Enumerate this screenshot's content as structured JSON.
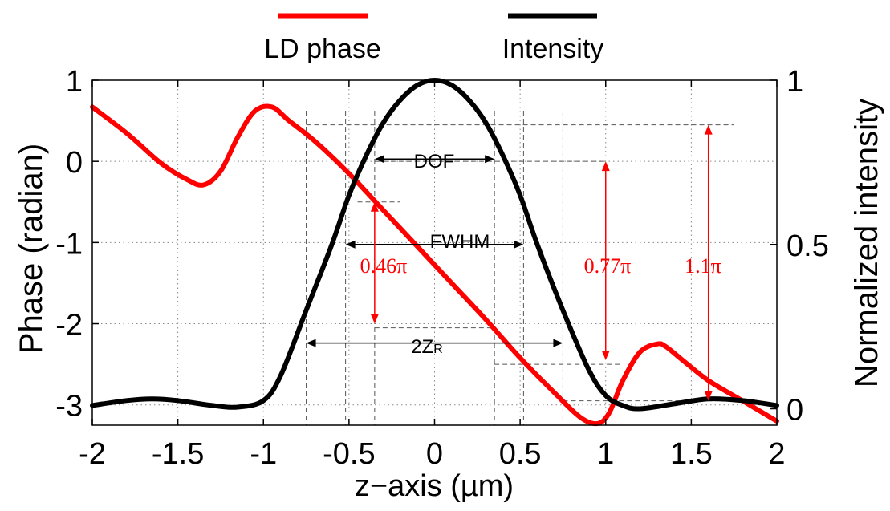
{
  "chart_data": {
    "type": "line",
    "xlabel": "z−axis (µm)",
    "ylabel_left": "Phase (radian)",
    "ylabel_right": "Normalized intensity",
    "xlim": [
      -2,
      2
    ],
    "ylim_left": [
      -3.25,
      1
    ],
    "ylim_right": [
      -0.05,
      1
    ],
    "xticks": [
      {
        "v": -2,
        "label": "-2"
      },
      {
        "v": -1.5,
        "label": "-1.5"
      },
      {
        "v": -1,
        "label": "-1"
      },
      {
        "v": -0.5,
        "label": "-0.5"
      },
      {
        "v": 0,
        "label": "0"
      },
      {
        "v": 0.5,
        "label": "0.5"
      },
      {
        "v": 1,
        "label": "1"
      },
      {
        "v": 1.5,
        "label": "1.5"
      },
      {
        "v": 2,
        "label": "2"
      }
    ],
    "yticks_left": [
      {
        "v": 1,
        "label": "1"
      },
      {
        "v": 0,
        "label": "0"
      },
      {
        "v": -1,
        "label": "-1"
      },
      {
        "v": -2,
        "label": "-2"
      },
      {
        "v": -3,
        "label": "-3"
      }
    ],
    "yticks_right": [
      {
        "v": 1,
        "label": "1"
      },
      {
        "v": 0.5,
        "label": "0.5"
      },
      {
        "v": 0,
        "label": "0"
      }
    ],
    "grid": true,
    "legend_position": "top",
    "series": [
      {
        "name": "LD phase",
        "axis": "left",
        "color": "#ff0000",
        "x": [
          -2.0,
          -1.8,
          -1.6,
          -1.45,
          -1.35,
          -1.25,
          -1.15,
          -1.05,
          -0.95,
          -0.85,
          -0.7,
          -0.5,
          -0.3,
          -0.1,
          0.1,
          0.3,
          0.5,
          0.7,
          0.85,
          0.95,
          1.02,
          1.1,
          1.2,
          1.3,
          1.35,
          1.45,
          1.6,
          1.8,
          2.0
        ],
        "y": [
          0.67,
          0.35,
          -0.02,
          -0.22,
          -0.29,
          -0.12,
          0.3,
          0.62,
          0.67,
          0.5,
          0.25,
          -0.15,
          -0.6,
          -1.05,
          -1.5,
          -1.95,
          -2.42,
          -2.85,
          -3.15,
          -3.23,
          -3.1,
          -2.7,
          -2.35,
          -2.25,
          -2.28,
          -2.45,
          -2.7,
          -2.95,
          -3.2
        ]
      },
      {
        "name": "Intensity",
        "axis": "right",
        "color": "#000000",
        "x": [
          -2.0,
          -1.8,
          -1.65,
          -1.5,
          -1.3,
          -1.15,
          -1.0,
          -0.9,
          -0.75,
          -0.6,
          -0.5,
          -0.4,
          -0.3,
          -0.2,
          -0.1,
          0.0,
          0.1,
          0.2,
          0.3,
          0.4,
          0.5,
          0.6,
          0.75,
          0.9,
          1.0,
          1.1,
          1.2,
          1.4,
          1.6,
          1.8,
          2.0
        ],
        "y": [
          0.01,
          0.025,
          0.03,
          0.025,
          0.01,
          0.005,
          0.025,
          0.1,
          0.3,
          0.5,
          0.65,
          0.77,
          0.87,
          0.94,
          0.985,
          1.0,
          0.985,
          0.94,
          0.87,
          0.77,
          0.65,
          0.5,
          0.3,
          0.12,
          0.04,
          0.01,
          0.0,
          0.015,
          0.03,
          0.025,
          0.01
        ]
      }
    ],
    "annotations": {
      "dof_label": "DOF",
      "fwhm_label": "FWHM",
      "zr_label": "2Z",
      "zr_sub": "R",
      "p046": "0.46π",
      "p077": "0.77π",
      "p11": "1.1π",
      "dof_x": [
        -0.35,
        0.35
      ],
      "fwhm_x": [
        -0.52,
        0.52
      ],
      "zr_x": [
        -0.75,
        0.75
      ],
      "dof_intensity": 0.76,
      "fwhm_intensity": 0.5,
      "zr_intensity": 0.2,
      "arrow_046": {
        "x": -0.35,
        "y_top": -0.5,
        "y_bottom": -2.0
      },
      "arrow_077": {
        "x": 1.0,
        "y_top": 0.0,
        "y_bottom": -2.45
      },
      "arrow_11": {
        "x": 1.6,
        "y_top": 0.45,
        "y_bottom": -2.95
      },
      "ref_lines": [
        {
          "y": 0.45,
          "x1": -0.75,
          "x2": 1.75
        },
        {
          "y": 0.0,
          "x1": -0.35,
          "x2": 1.0
        },
        {
          "y": -0.5,
          "x1": -0.45,
          "x2": -0.2
        },
        {
          "y": -2.05,
          "x1": -0.35,
          "x2": 0.35
        },
        {
          "y": -2.5,
          "x1": 0.35,
          "x2": 1.1
        },
        {
          "y": -2.95,
          "x1": 0.75,
          "x2": 1.75
        }
      ]
    }
  }
}
